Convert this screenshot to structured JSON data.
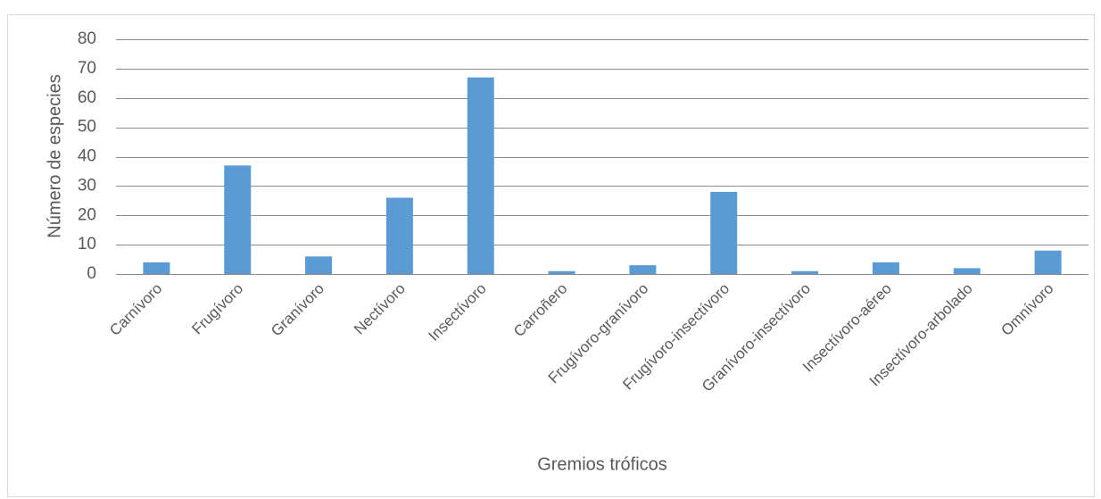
{
  "chart_data": {
    "type": "bar",
    "x_label": "Gremios tróficos",
    "y_label": "Número de especies",
    "categories": [
      "Carnívoro",
      "Frugívoro",
      "Granívoro",
      "Nectívoro",
      "Insectívoro",
      "Carroñero",
      "Frugívoro-granívoro",
      "Frugívoro-insectívoro",
      "Granívoro-insectívoro",
      "Insectívoro-aéreo",
      "Insectívoro-arbolado",
      "Omnívoro"
    ],
    "values": [
      4,
      37,
      6,
      26,
      67,
      1,
      3,
      28,
      1,
      4,
      2,
      8
    ],
    "color": "#5b9bd5",
    "ylim": [
      0,
      80
    ],
    "yticks": [
      0,
      10,
      20,
      30,
      40,
      50,
      60,
      70,
      80
    ],
    "grid": true
  }
}
